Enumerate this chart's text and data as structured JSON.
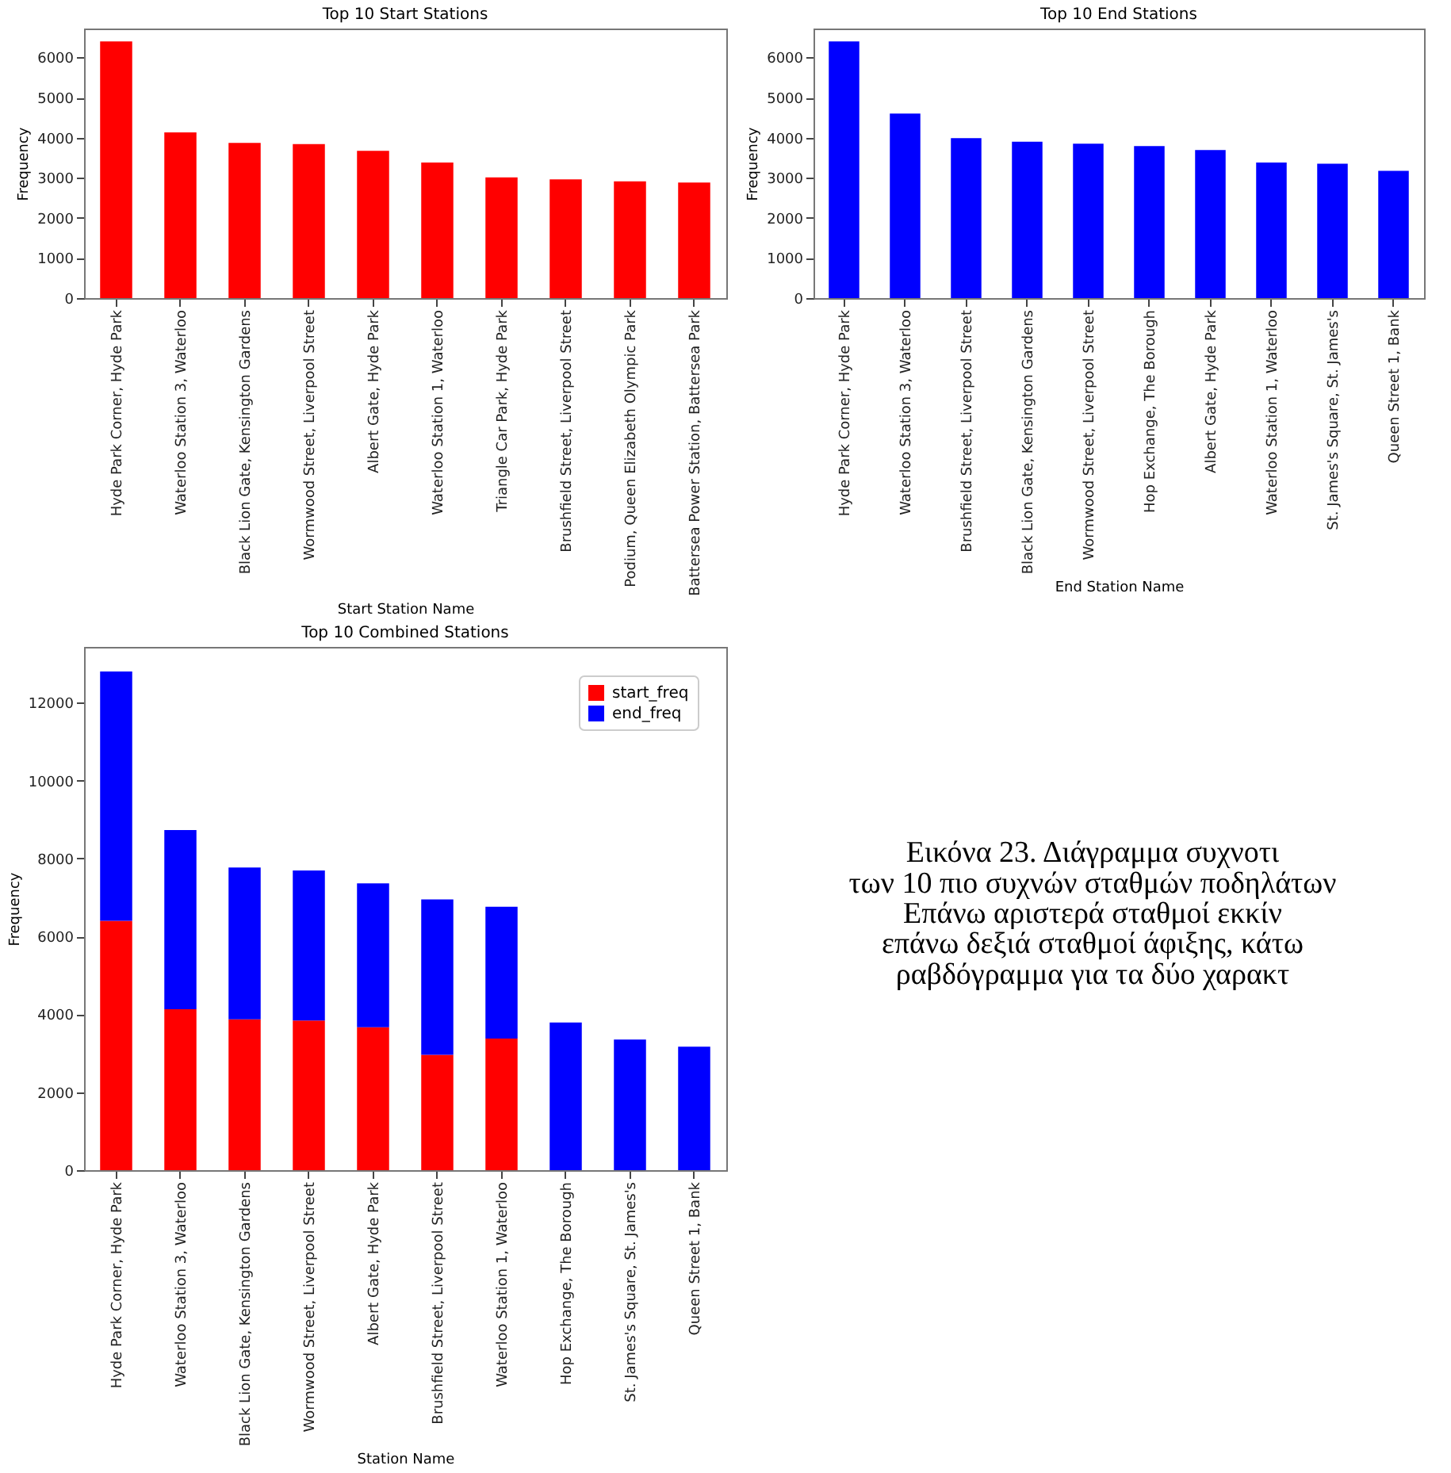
{
  "chart_data": [
    {
      "type": "bar",
      "title": "Top 10 Start Stations",
      "xlabel": "Start Station Name",
      "ylabel": "Frequency",
      "categories": [
        "Hyde Park Corner, Hyde Park",
        "Waterloo Station 3, Waterloo",
        "Black Lion Gate, Kensington Gardens",
        "Wormwood Street, Liverpool Street",
        "Albert Gate, Hyde Park",
        "Waterloo Station 1, Waterloo",
        "Triangle Car Park, Hyde Park",
        "Brushfield Street, Liverpool Street",
        "Podium, Queen Elizabeth Olympic Park",
        "Battersea Power Station, Battersea Park"
      ],
      "values": [
        6400,
        4130,
        3870,
        3840,
        3670,
        3380,
        3010,
        2960,
        2910,
        2880
      ],
      "color": "#ff0000",
      "ylim": [
        0,
        6720
      ],
      "yticks": [
        0,
        1000,
        2000,
        3000,
        4000,
        5000,
        6000
      ],
      "grid": false
    },
    {
      "type": "bar",
      "title": "Top 10 End Stations",
      "xlabel": "End Station Name",
      "ylabel": "Frequency",
      "categories": [
        "Hyde Park Corner, Hyde Park",
        "Waterloo Station 3, Waterloo",
        "Brushfield Street, Liverpool Street",
        "Black Lion Gate, Kensington Gardens",
        "Wormwood Street, Liverpool Street",
        "Hop Exchange, The Borough",
        "Albert Gate, Hyde Park",
        "Waterloo Station 1, Waterloo",
        "St. James's Square, St. James's",
        "Queen Street 1, Bank"
      ],
      "values": [
        6400,
        4600,
        3990,
        3900,
        3850,
        3790,
        3690,
        3380,
        3350,
        3170
      ],
      "color": "#0000ff",
      "ylim": [
        0,
        6720
      ],
      "yticks": [
        0,
        1000,
        2000,
        3000,
        4000,
        5000,
        6000
      ],
      "grid": false
    },
    {
      "type": "bar",
      "title": "Top 10 Combined Stations",
      "xlabel": "Station Name",
      "ylabel": "Frequency",
      "stacked": true,
      "legend": "top right",
      "categories": [
        "Hyde Park Corner, Hyde Park",
        "Waterloo Station 3, Waterloo",
        "Black Lion Gate, Kensington Gardens",
        "Wormwood Street, Liverpool Street",
        "Albert Gate, Hyde Park",
        "Brushfield Street, Liverpool Street",
        "Waterloo Station 1, Waterloo",
        "Hop Exchange, The Borough",
        "St. James's Square, St. James's",
        "Queen Street 1, Bank"
      ],
      "series": [
        {
          "name": "start_freq",
          "color": "#ff0000",
          "values": [
            6400,
            4130,
            3870,
            3840,
            3670,
            2960,
            3380,
            null,
            null,
            null
          ]
        },
        {
          "name": "end_freq",
          "color": "#0000ff",
          "values": [
            6400,
            4600,
            3900,
            3850,
            3690,
            3990,
            3380,
            3790,
            3350,
            3170
          ]
        }
      ],
      "ylim": [
        0,
        13430
      ],
      "yticks": [
        0,
        2000,
        4000,
        6000,
        8000,
        10000,
        12000
      ],
      "grid": false
    },
    {
      "type": "other",
      "annotations": [
        "Εικόνα 23. Διάγραμμα συχνοτι",
        "των 10 πιο συχνών σταθμών ποδηλάτων",
        "Επάνω αριστερά σταθμοί εκκίν",
        "επάνω δεξιά σταθμοί άφιξης, κάτω",
        "ραβδόγραμμα για τα δύο χαρακτ"
      ]
    }
  ]
}
